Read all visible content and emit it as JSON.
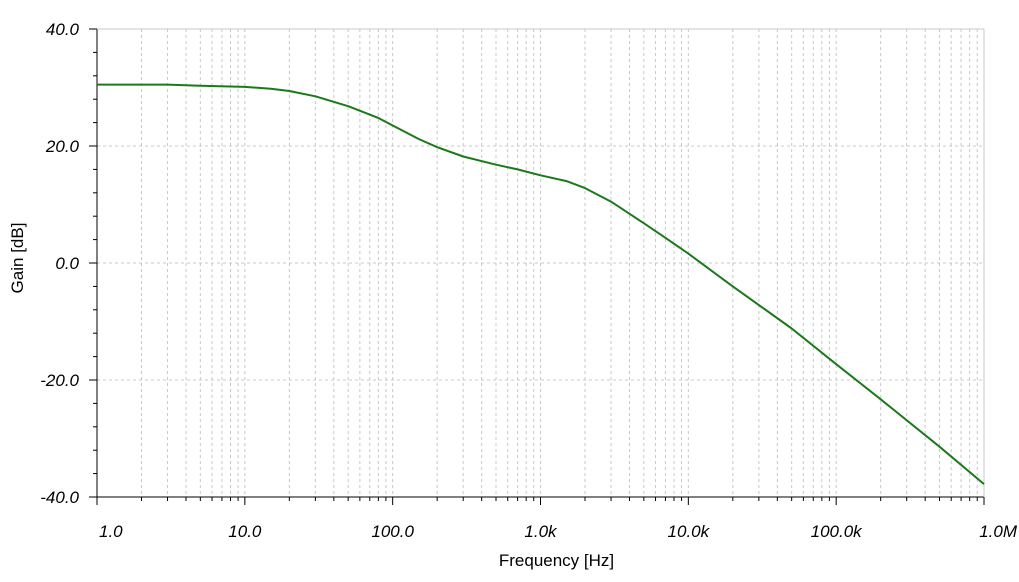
{
  "chart_data": {
    "type": "line",
    "title": "",
    "xlabel": "Frequency [Hz]",
    "ylabel": "Gain [dB]",
    "x_scale": "log",
    "xlim": [
      1,
      1000000
    ],
    "ylim": [
      -40,
      40
    ],
    "grid": true,
    "x_tick_values": [
      1,
      10,
      100,
      1000,
      10000,
      100000,
      1000000
    ],
    "x_tick_labels": [
      "1.0",
      "10.0",
      "100.0",
      "1.0k",
      "10.0k",
      "100.0k",
      "1.0M"
    ],
    "y_tick_values": [
      -40,
      -20,
      0,
      20,
      40
    ],
    "y_tick_labels": [
      "-40.0",
      "-20.0",
      "0.0",
      "20.0",
      "40.0"
    ],
    "series_color": "#1a7a1a",
    "series": [
      {
        "x": [
          1,
          3,
          5,
          10,
          15,
          20,
          30,
          50,
          80,
          100,
          150,
          200,
          300,
          500,
          700,
          1000,
          1500,
          2000,
          3000,
          5000,
          7000,
          10000,
          20000,
          50000,
          100000,
          200000,
          500000,
          1000000
        ],
        "y": [
          30.5,
          30.5,
          30.3,
          30.1,
          29.8,
          29.4,
          28.5,
          26.8,
          24.8,
          23.5,
          21.2,
          19.8,
          18.2,
          16.8,
          16.0,
          15.0,
          14.0,
          12.8,
          10.5,
          6.8,
          4.3,
          1.6,
          -4.0,
          -11.2,
          -17.3,
          -23.3,
          -31.4,
          -37.8
        ]
      }
    ]
  }
}
